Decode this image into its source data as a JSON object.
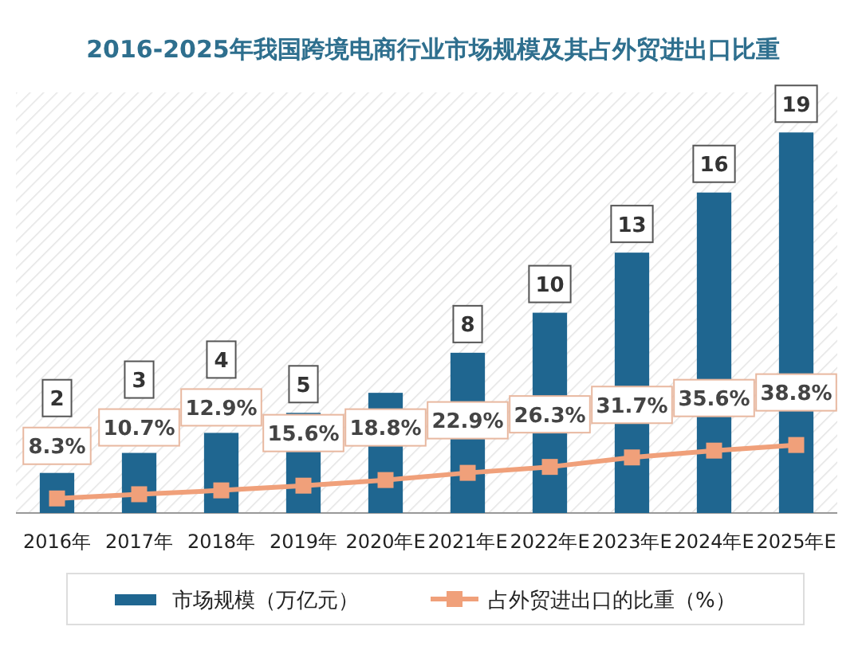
{
  "chart_data": {
    "type": "bar",
    "title": "2016-2025年我国跨境电商行业市场规模及其占外贸进出口比重",
    "categories": [
      "2016年",
      "2017年",
      "2018年",
      "2019年",
      "2020年E",
      "2021年E",
      "2022年E",
      "2023年E",
      "2024年E",
      "2025年E"
    ],
    "series": [
      {
        "name": "市场规模（万亿元）",
        "color": "#1f6690",
        "values": [
          2,
          3,
          4,
          5,
          6,
          8,
          10,
          13,
          16,
          19
        ],
        "value_labels": [
          "2",
          "3",
          "4",
          "5",
          null,
          "8",
          "10",
          "13",
          "16",
          "19"
        ]
      },
      {
        "name": "占外贸进出口的比重（%）",
        "type": "line",
        "axis": "y2",
        "color": "#f0a07a",
        "marker": "square",
        "values": [
          8.3,
          10.7,
          12.9,
          15.6,
          18.8,
          22.9,
          26.3,
          31.7,
          35.6,
          38.8
        ],
        "value_labels": [
          "8.3%",
          "10.7%",
          "12.9%",
          "15.6%",
          "18.8%",
          "22.9%",
          "26.3%",
          "31.7%",
          "35.6%",
          "38.8%"
        ]
      }
    ],
    "ylim": [
      0,
      21
    ],
    "y2lim": [
      0,
      240
    ],
    "legend": "bottom"
  }
}
